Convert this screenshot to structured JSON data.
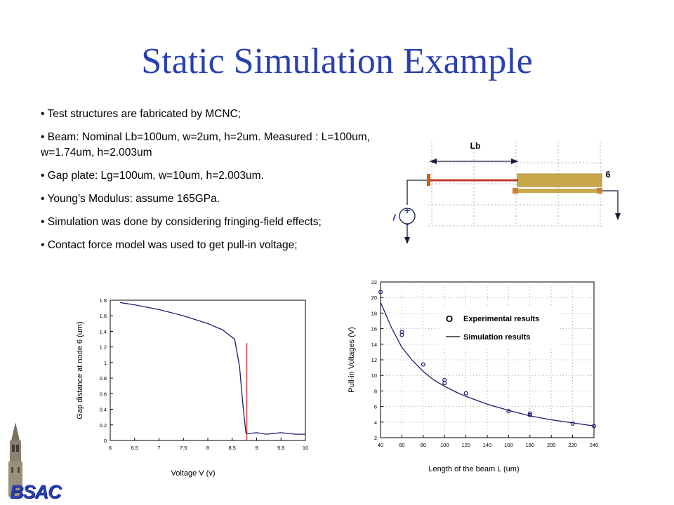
{
  "title": "Static Simulation Example",
  "bullets": [
    "• Test structures are fabricated by MCNC;",
    "• Beam: Nominal Lb=100um, w=2um, h=2um. Measured : L=100um, w=1.74um, h=2.003um",
    "• Gap plate: Lg=100um, w=10um,  h=2.003um.",
    "• Young’s Modulus: assume 165GPa.",
    "•  Simulation was done by considering fringing-field effects;",
    "• Contact force model was used to get pull-in voltage;"
  ],
  "diagram": {
    "lb_label": "Lb",
    "node_label": "6",
    "v_label": "V",
    "plus": "+",
    "minus": "-",
    "colors": {
      "beam": "#c0392b",
      "plate": "#c8a84a",
      "grid": "#b0b0b0",
      "arrow": "#1a1a3a"
    }
  },
  "logo_text": "BSAC",
  "chart_data": [
    {
      "type": "line",
      "xlabel": "Voltage V (v)",
      "ylabel": "Gap distance at node 6 (um)",
      "xlim": [
        6,
        10
      ],
      "ylim": [
        0,
        1.8
      ],
      "xticks": [
        "6",
        "6.5",
        "7",
        "7.5",
        "8",
        "8.5",
        "9",
        "9.5",
        "10"
      ],
      "yticks": [
        "0",
        "0.2",
        "0.4",
        "0.6",
        "0.8",
        "1",
        "1.2",
        "1.4",
        "1.6",
        "1.8"
      ],
      "grid": false,
      "series": [
        {
          "color": "#1a1a6a",
          "x": [
            6.2,
            6.5,
            7.0,
            7.5,
            8.0,
            8.3,
            8.55,
            8.65,
            8.72,
            8.78,
            8.8,
            8.85,
            9.0,
            9.2,
            9.5,
            9.8,
            10.0
          ],
          "y": [
            1.77,
            1.74,
            1.68,
            1.6,
            1.5,
            1.42,
            1.3,
            0.95,
            0.45,
            0.1,
            0.09,
            0.09,
            0.1,
            0.08,
            0.1,
            0.08,
            0.08
          ]
        }
      ],
      "vline": {
        "x": 8.8,
        "y_top": 1.25,
        "color": "#d02020"
      }
    },
    {
      "type": "scatter",
      "xlabel": "Length of the beam L (um)",
      "ylabel": "Pull-in Voltages (V)",
      "xlim": [
        40,
        240
      ],
      "ylim": [
        2,
        22
      ],
      "xticks": [
        "40",
        "60",
        "80",
        "100",
        "120",
        "140",
        "160",
        "180",
        "200",
        "220",
        "240"
      ],
      "yticks": [
        "2",
        "4",
        "6",
        "8",
        "10",
        "12",
        "14",
        "16",
        "18",
        "20",
        "22"
      ],
      "grid": true,
      "legend_position": "top-right",
      "series": [
        {
          "name": "Experimental results",
          "marker": "o",
          "x": [
            40,
            60,
            60,
            80,
            100,
            100,
            120,
            160,
            180,
            180,
            220,
            240
          ],
          "y": [
            20.7,
            15.6,
            15.2,
            11.4,
            9.4,
            9.0,
            7.7,
            5.4,
            5.1,
            4.9,
            3.8,
            3.5
          ]
        },
        {
          "name": "Simulation results",
          "marker": "line",
          "x": [
            40,
            50,
            60,
            70,
            80,
            90,
            100,
            110,
            120,
            140,
            160,
            180,
            200,
            220,
            240
          ],
          "y": [
            19.4,
            16.2,
            13.6,
            11.9,
            10.5,
            9.4,
            8.6,
            7.9,
            7.3,
            6.3,
            5.5,
            4.8,
            4.3,
            3.9,
            3.5
          ]
        }
      ]
    }
  ]
}
